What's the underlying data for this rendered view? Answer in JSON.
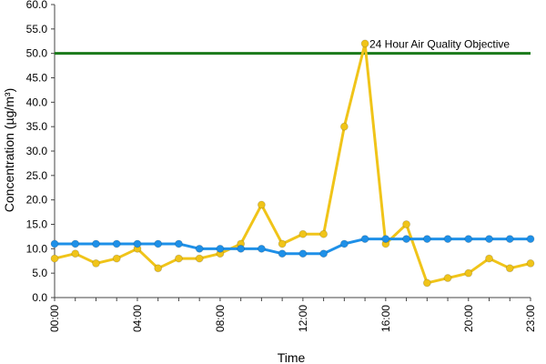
{
  "chart_data": {
    "type": "line",
    "xlabel": "Time",
    "ylabel": "Concentration (µg/m³)",
    "ylim": [
      0,
      60
    ],
    "y_ticks": [
      "0.0",
      "5.0",
      "10.0",
      "15.0",
      "20.0",
      "25.0",
      "30.0",
      "35.0",
      "40.0",
      "45.0",
      "50.0",
      "55.0",
      "60.0"
    ],
    "x_hours": [
      0,
      1,
      2,
      3,
      4,
      5,
      6,
      7,
      8,
      9,
      10,
      11,
      12,
      13,
      14,
      15,
      16,
      17,
      18,
      19,
      20,
      21,
      22,
      23
    ],
    "x_ticks": [
      {
        "hour": 0,
        "label": "00:00"
      },
      {
        "hour": 4,
        "label": "04:00"
      },
      {
        "hour": 8,
        "label": "08:00"
      },
      {
        "hour": 12,
        "label": "12:00"
      },
      {
        "hour": 16,
        "label": "16:00"
      },
      {
        "hour": 20,
        "label": "20:00"
      },
      {
        "hour": 23,
        "label": "23:00"
      }
    ],
    "grid": false,
    "reference_line": {
      "value": 50,
      "label": "24 Hour Air Quality Objective",
      "color": "#1a7a1a"
    },
    "series": [
      {
        "color": "#f0c419",
        "values": [
          8,
          9,
          7,
          8,
          10,
          6,
          8,
          8,
          9,
          11,
          19,
          11,
          13,
          13,
          35,
          52,
          11,
          15,
          3,
          4,
          5,
          8,
          6,
          7
        ]
      },
      {
        "color": "#1e90e8",
        "values": [
          11,
          11,
          11,
          11,
          11,
          11,
          11,
          10,
          10,
          10,
          10,
          9,
          9,
          9,
          11,
          12,
          12,
          12,
          12,
          12,
          12,
          12,
          12,
          12
        ]
      }
    ]
  }
}
